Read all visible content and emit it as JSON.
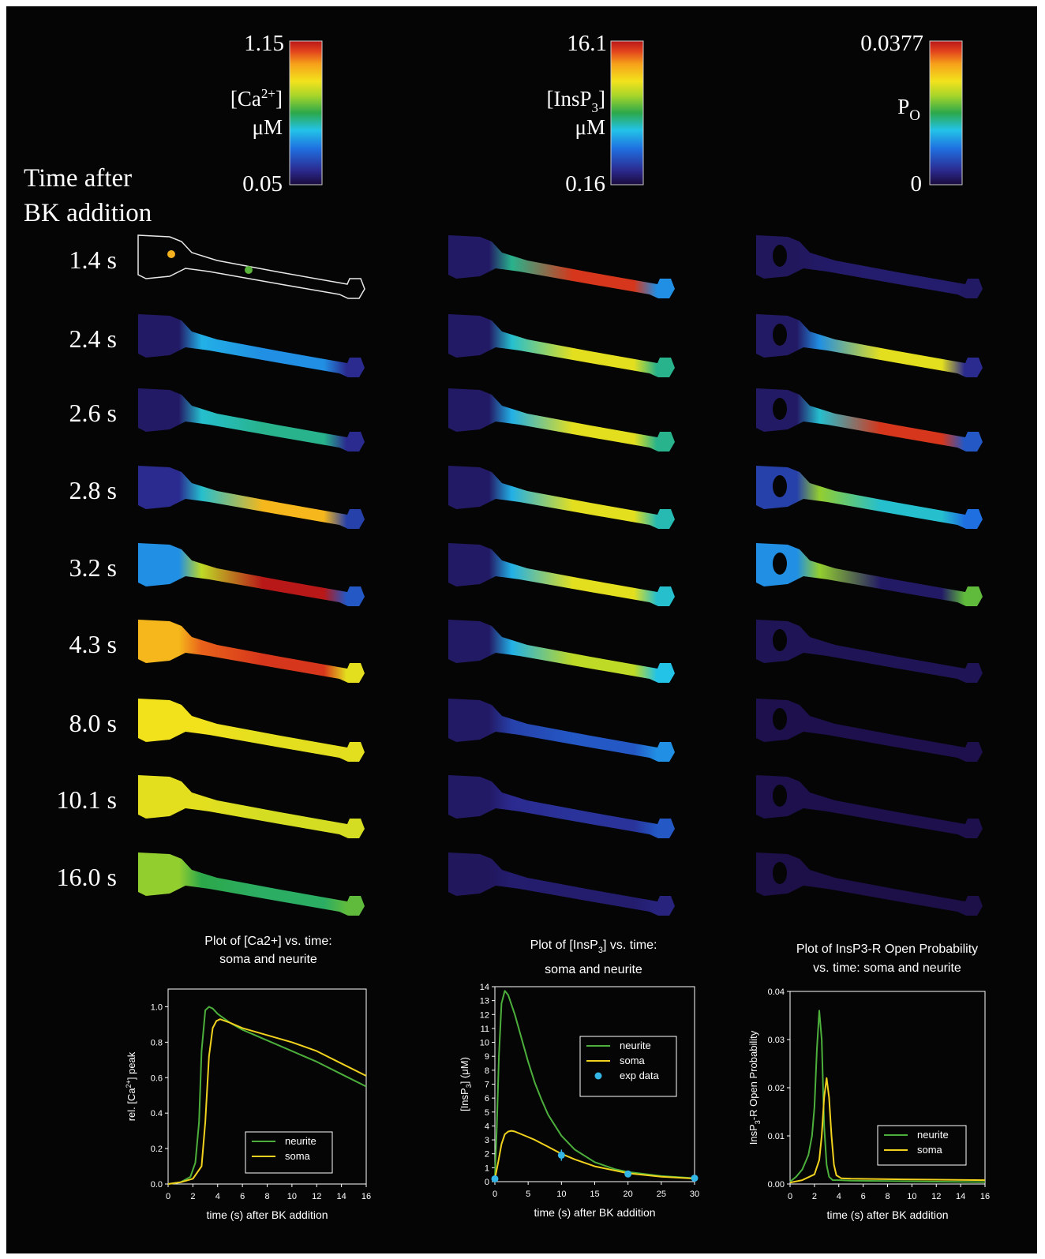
{
  "header": {
    "time_label_line1": "Time after",
    "time_label_line2": "BK addition"
  },
  "colorbars": [
    {
      "max": "1.15",
      "min": "0.05",
      "label_line1": "[Ca",
      "label_sup": "2+",
      "label_line1_end": "]",
      "label_line2": "μM"
    },
    {
      "max": "16.1",
      "min": "0.16",
      "label_line1": "[InsP",
      "label_sub": "3",
      "label_line1_end": "]",
      "label_line2": "μM"
    },
    {
      "max": "0.0377",
      "min": "0",
      "label_main": "P",
      "label_sub": "O"
    }
  ],
  "time_points": [
    "1.4 s",
    "2.4 s",
    "2.6 s",
    "2.8 s",
    "3.2 s",
    "4.3 s",
    "8.0 s",
    "10.1 s",
    "16.0 s"
  ],
  "cell_color_levels": {
    "ca": [
      {
        "soma": null,
        "neck": null,
        "neurite": null,
        "tip": null
      },
      {
        "soma": 0.05,
        "neck": 0.35,
        "neurite": 0.3,
        "tip": 0.1
      },
      {
        "soma": 0.05,
        "neck": 0.4,
        "neurite": 0.45,
        "tip": 0.1
      },
      {
        "soma": 0.1,
        "neck": 0.4,
        "neurite": 0.8,
        "tip": 0.15
      },
      {
        "soma": 0.3,
        "neck": 0.65,
        "neurite": 1.0,
        "tip": 0.2
      },
      {
        "soma": 0.8,
        "neck": 0.9,
        "neurite": 0.95,
        "tip": 0.7
      },
      {
        "soma": 0.72,
        "neck": 0.72,
        "neurite": 0.7,
        "tip": 0.7
      },
      {
        "soma": 0.7,
        "neck": 0.7,
        "neurite": 0.68,
        "tip": 0.68
      },
      {
        "soma": 0.6,
        "neck": 0.5,
        "neurite": 0.48,
        "tip": 0.55
      }
    ],
    "insp3": [
      {
        "soma": 0.05,
        "neck": 0.45,
        "neurite": 0.95,
        "tip": 0.3
      },
      {
        "soma": 0.05,
        "neck": 0.4,
        "neurite": 0.7,
        "tip": 0.45
      },
      {
        "soma": 0.05,
        "neck": 0.35,
        "neurite": 0.7,
        "tip": 0.45
      },
      {
        "soma": 0.05,
        "neck": 0.35,
        "neurite": 0.7,
        "tip": 0.42
      },
      {
        "soma": 0.05,
        "neck": 0.35,
        "neurite": 0.7,
        "tip": 0.4
      },
      {
        "soma": 0.05,
        "neck": 0.35,
        "neurite": 0.65,
        "tip": 0.38
      },
      {
        "soma": 0.05,
        "neck": 0.15,
        "neurite": 0.2,
        "tip": 0.3
      },
      {
        "soma": 0.05,
        "neck": 0.1,
        "neurite": 0.12,
        "tip": 0.2
      },
      {
        "soma": 0.04,
        "neck": 0.06,
        "neurite": 0.06,
        "tip": 0.08
      }
    ],
    "po": [
      {
        "soma": 0.04,
        "neck": 0.05,
        "neurite": 0.06,
        "tip": 0.05
      },
      {
        "soma": 0.05,
        "neck": 0.3,
        "neurite": 0.7,
        "tip": 0.1
      },
      {
        "soma": 0.05,
        "neck": 0.4,
        "neurite": 0.95,
        "tip": 0.2
      },
      {
        "soma": 0.15,
        "neck": 0.6,
        "neurite": 0.4,
        "tip": 0.25
      },
      {
        "soma": 0.3,
        "neck": 0.6,
        "neurite": 0.05,
        "tip": 0.55
      },
      {
        "soma": 0.03,
        "neck": 0.03,
        "neurite": 0.03,
        "tip": 0.03
      },
      {
        "soma": 0.02,
        "neck": 0.02,
        "neurite": 0.02,
        "tip": 0.02
      },
      {
        "soma": 0.02,
        "neck": 0.02,
        "neurite": 0.02,
        "tip": 0.02
      },
      {
        "soma": 0.015,
        "neck": 0.015,
        "neurite": 0.015,
        "tip": 0.015
      }
    ]
  },
  "chart_data": [
    {
      "type": "line",
      "title_line1": "Plot of [Ca2+] vs. time:",
      "title_line2": "soma and neurite",
      "xlabel": "time (s) after BK addition",
      "ylabel_parts": [
        "rel. [Ca",
        "2+",
        "] peak"
      ],
      "xlim": [
        0,
        16
      ],
      "ylim": [
        0,
        1.1
      ],
      "xticks": [
        0,
        2,
        4,
        6,
        8,
        10,
        12,
        14,
        16
      ],
      "yticks": [
        0.0,
        0.2,
        0.4,
        0.6,
        0.8,
        1.0
      ],
      "ytick_labels": [
        "0.0",
        "0.2",
        "0.4",
        "0.6",
        "0.8",
        "1.0"
      ],
      "legend_position": "lower-center",
      "series": [
        {
          "name": "neurite",
          "color": "#4caf3c",
          "x": [
            0,
            1,
            1.8,
            2.2,
            2.5,
            2.7,
            3.0,
            3.3,
            3.6,
            4,
            5,
            6,
            8,
            10,
            12,
            14,
            16
          ],
          "y": [
            0,
            0.01,
            0.04,
            0.12,
            0.35,
            0.75,
            0.98,
            1.0,
            0.99,
            0.96,
            0.91,
            0.87,
            0.81,
            0.75,
            0.69,
            0.62,
            0.55
          ]
        },
        {
          "name": "soma",
          "color": "#f1d21e",
          "x": [
            0,
            1,
            2,
            2.7,
            3.0,
            3.3,
            3.6,
            3.9,
            4.2,
            5,
            6,
            8,
            10,
            12,
            14,
            16
          ],
          "y": [
            0,
            0.01,
            0.03,
            0.1,
            0.35,
            0.72,
            0.88,
            0.92,
            0.93,
            0.91,
            0.88,
            0.84,
            0.8,
            0.75,
            0.68,
            0.61
          ]
        }
      ]
    },
    {
      "type": "line",
      "title_line1": "Plot of [InsP",
      "title_sub": "3",
      "title_line1_end": "] vs. time:",
      "title_line2": "soma and neurite",
      "xlabel": "time (s) after BK addition",
      "ylabel_parts": [
        "[InsP",
        "3",
        "] (μM)"
      ],
      "xlim": [
        0,
        30
      ],
      "ylim": [
        0,
        14
      ],
      "xticks": [
        0,
        5,
        10,
        15,
        20,
        25,
        30
      ],
      "yticks": [
        0,
        1,
        2,
        3,
        4,
        5,
        6,
        7,
        8,
        9,
        10,
        11,
        12,
        13,
        14
      ],
      "ytick_labels": [
        "0",
        "1",
        "2",
        "3",
        "4",
        "5",
        "6",
        "7",
        "8",
        "9",
        "10",
        "11",
        "12",
        "13",
        "14"
      ],
      "legend_position": "right",
      "series": [
        {
          "name": "neurite",
          "color": "#4caf3c",
          "x": [
            0,
            0.3,
            0.6,
            1.0,
            1.5,
            2,
            3,
            4,
            5,
            6,
            7,
            8,
            10,
            12,
            15,
            18,
            20,
            25,
            30
          ],
          "y": [
            0.2,
            4.0,
            9.0,
            12.8,
            13.7,
            13.4,
            12.0,
            10.3,
            8.6,
            7.1,
            5.9,
            4.8,
            3.3,
            2.3,
            1.4,
            0.9,
            0.7,
            0.4,
            0.25
          ]
        },
        {
          "name": "soma",
          "color": "#f1d21e",
          "x": [
            0,
            0.5,
            1,
            1.5,
            2,
            2.5,
            3,
            4,
            5,
            6,
            8,
            10,
            12,
            15,
            20,
            25,
            30
          ],
          "y": [
            0.2,
            1.4,
            2.7,
            3.4,
            3.6,
            3.65,
            3.6,
            3.4,
            3.2,
            3.0,
            2.5,
            2.0,
            1.6,
            1.1,
            0.6,
            0.35,
            0.22
          ]
        }
      ],
      "points": {
        "name": "exp data",
        "color": "#33b5e5",
        "x": [
          0,
          10,
          20,
          30
        ],
        "y": [
          0.2,
          1.9,
          0.55,
          0.25
        ],
        "err": [
          0,
          0.4,
          0,
          0
        ]
      }
    },
    {
      "type": "line",
      "title_line1": "Plot of InsP3-R Open Probability",
      "title_line2": "vs. time: soma and neurite",
      "xlabel": "time (s) after BK addition",
      "ylabel_parts": [
        "InsP",
        "3",
        "-R Open Probability"
      ],
      "xlim": [
        0,
        16
      ],
      "ylim": [
        0,
        0.04
      ],
      "xticks": [
        0,
        2,
        4,
        6,
        8,
        10,
        12,
        14,
        16
      ],
      "yticks": [
        0.0,
        0.01,
        0.02,
        0.03,
        0.04
      ],
      "ytick_labels": [
        "0.00",
        "0.01",
        "0.02",
        "0.03",
        "0.04"
      ],
      "legend_position": "lower-right",
      "series": [
        {
          "name": "neurite",
          "color": "#4caf3c",
          "x": [
            0,
            0.5,
            1.0,
            1.5,
            1.8,
            2.0,
            2.2,
            2.4,
            2.6,
            2.8,
            3.0,
            3.2,
            3.5,
            4,
            5,
            8,
            12,
            16
          ],
          "y": [
            0.0005,
            0.0015,
            0.003,
            0.006,
            0.01,
            0.016,
            0.028,
            0.036,
            0.03,
            0.012,
            0.004,
            0.0015,
            0.0008,
            0.0008,
            0.0007,
            0.0006,
            0.0005,
            0.0004
          ]
        },
        {
          "name": "soma",
          "color": "#f1d21e",
          "x": [
            0,
            1,
            2,
            2.4,
            2.6,
            2.8,
            3.0,
            3.2,
            3.4,
            3.6,
            3.8,
            4.2,
            5,
            8,
            12,
            16
          ],
          "y": [
            0.0003,
            0.0008,
            0.002,
            0.005,
            0.01,
            0.018,
            0.022,
            0.018,
            0.01,
            0.004,
            0.0018,
            0.0012,
            0.0011,
            0.001,
            0.0009,
            0.0008
          ]
        }
      ]
    }
  ]
}
